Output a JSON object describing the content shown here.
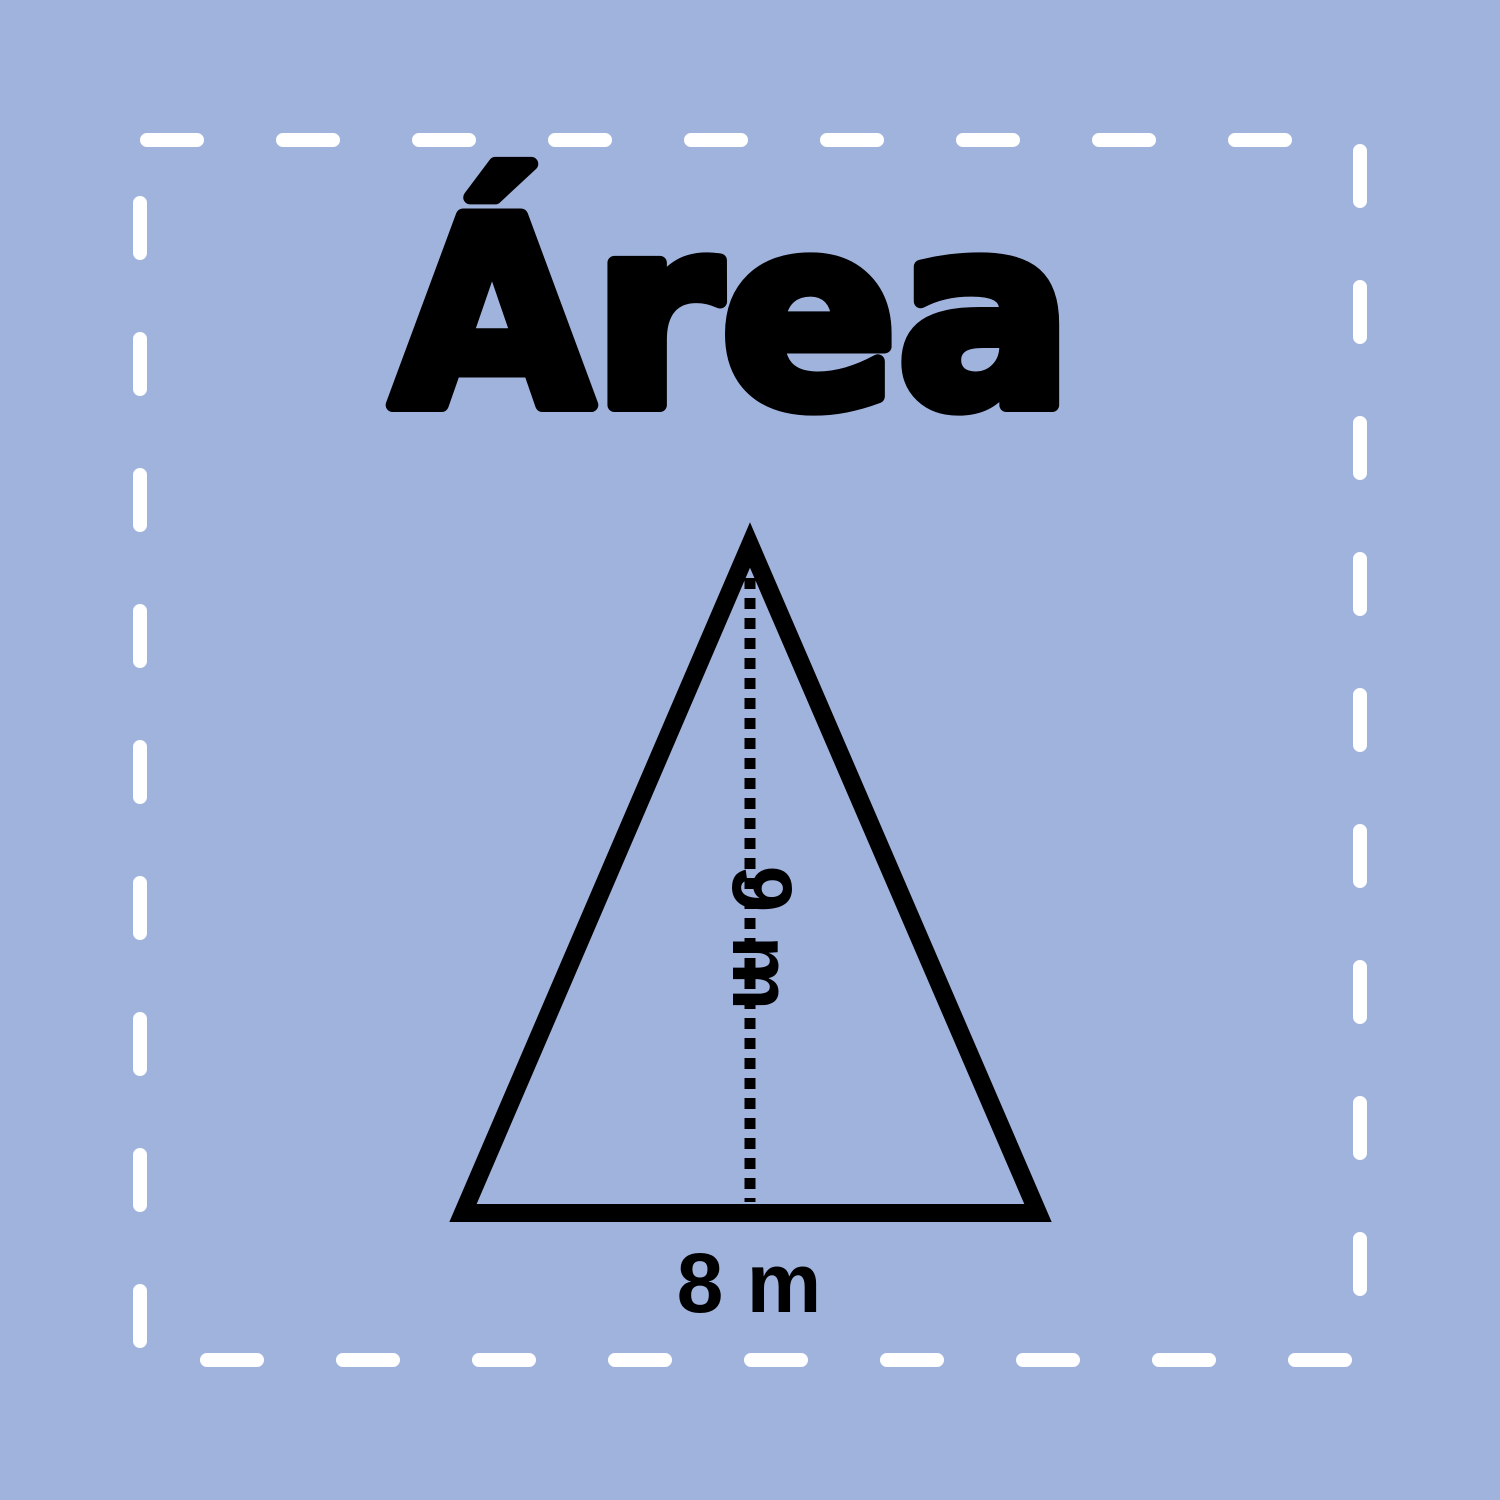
{
  "title": "Área",
  "diagram": {
    "shape": "triangle",
    "base_label": "8 m",
    "height_label": "9 m"
  },
  "colors": {
    "background": "#a0b3dd",
    "border": "#ffffff",
    "stroke": "#000000"
  }
}
